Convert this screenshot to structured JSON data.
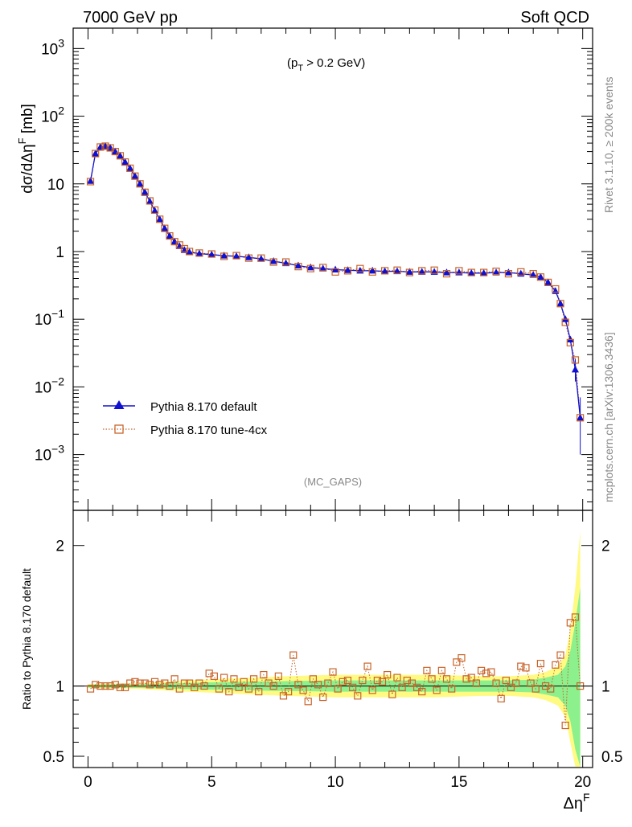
{
  "header": {
    "left": "7000 GeV pp",
    "right": "Soft QCD"
  },
  "annotation": "(p_T > 0.2 GeV)",
  "analysis_tag": "(MC_GAPS)",
  "side_labels": {
    "rivet": "Rivet 3.1.10, ≥ 200k events",
    "source": "mcplots.cern.ch [arXiv:1306.3436]"
  },
  "colors": {
    "default": "#1010d0",
    "tune": "#c8642a",
    "band_yellow": "#fffa82",
    "band_green": "#8cf08c"
  },
  "chart_data": [
    {
      "type": "line",
      "panel": "main",
      "ylabel": "dσ/dΔη^F [mb]",
      "xlim": [
        -0.6,
        20.4
      ],
      "ylim": [
        0.00015,
        2000
      ],
      "yscale": "log",
      "ytick_labels": [
        "10^-3",
        "10^-2",
        "10^-1",
        "1",
        "10",
        "10^2",
        "10^3"
      ],
      "legend_position": "lower-left",
      "series": [
        {
          "name": "Pythia 8.170 default",
          "marker": "filled-triangle",
          "x": [
            0.1,
            0.3,
            0.5,
            0.7,
            0.9,
            1.1,
            1.3,
            1.5,
            1.7,
            1.9,
            2.1,
            2.3,
            2.5,
            2.7,
            2.9,
            3.1,
            3.3,
            3.5,
            3.7,
            3.9,
            4.1,
            4.5,
            5.0,
            5.5,
            6.0,
            6.5,
            7.0,
            7.5,
            8.0,
            8.5,
            9.0,
            9.5,
            10.0,
            10.5,
            11.0,
            11.5,
            12.0,
            12.5,
            13.0,
            13.5,
            14.0,
            14.5,
            15.0,
            15.5,
            16.0,
            16.5,
            17.0,
            17.5,
            18.0,
            18.3,
            18.6,
            18.9,
            19.1,
            19.3,
            19.5,
            19.7,
            19.9
          ],
          "y": [
            11,
            28,
            35,
            36,
            34,
            30,
            26,
            21,
            17,
            13,
            10,
            7.5,
            5.5,
            4.0,
            3.0,
            2.2,
            1.7,
            1.4,
            1.2,
            1.05,
            0.98,
            0.93,
            0.9,
            0.87,
            0.85,
            0.82,
            0.78,
            0.72,
            0.67,
            0.62,
            0.58,
            0.56,
            0.54,
            0.53,
            0.52,
            0.52,
            0.51,
            0.51,
            0.5,
            0.5,
            0.5,
            0.49,
            0.49,
            0.48,
            0.48,
            0.49,
            0.49,
            0.47,
            0.45,
            0.42,
            0.35,
            0.26,
            0.17,
            0.1,
            0.05,
            0.018,
            0.0035
          ]
        },
        {
          "name": "Pythia 8.170 tune-4cx",
          "marker": "open-square",
          "x": [
            0.1,
            0.3,
            0.5,
            0.7,
            0.9,
            1.1,
            1.3,
            1.5,
            1.7,
            1.9,
            2.1,
            2.3,
            2.5,
            2.7,
            2.9,
            3.1,
            3.3,
            3.5,
            3.7,
            3.9,
            4.1,
            4.5,
            5.0,
            5.5,
            6.0,
            6.5,
            7.0,
            7.5,
            8.0,
            8.5,
            9.0,
            9.5,
            10.0,
            10.5,
            11.0,
            11.5,
            12.0,
            12.5,
            13.0,
            13.5,
            14.0,
            14.5,
            15.0,
            15.5,
            16.0,
            16.5,
            17.0,
            17.5,
            18.0,
            18.3,
            18.6,
            18.9,
            19.1,
            19.3,
            19.5,
            19.7,
            19.9
          ],
          "y": [
            10.8,
            28,
            35,
            36,
            34,
            30,
            26,
            21,
            17,
            13,
            10,
            7.5,
            5.6,
            4.1,
            3.0,
            2.2,
            1.7,
            1.4,
            1.25,
            1.1,
            1.0,
            0.95,
            0.92,
            0.85,
            0.87,
            0.8,
            0.8,
            0.7,
            0.7,
            0.6,
            0.56,
            0.58,
            0.5,
            0.52,
            0.56,
            0.5,
            0.52,
            0.53,
            0.49,
            0.52,
            0.53,
            0.47,
            0.52,
            0.49,
            0.49,
            0.51,
            0.47,
            0.5,
            0.47,
            0.42,
            0.35,
            0.28,
            0.17,
            0.09,
            0.045,
            0.025,
            0.0035
          ]
        }
      ]
    },
    {
      "type": "line",
      "panel": "ratio",
      "xlabel": "Δη^F",
      "ylabel": "Ratio to Pythia 8.170 default",
      "xlim": [
        -0.6,
        20.4
      ],
      "ylim": [
        0.42,
        2.25
      ],
      "xtick_labels": [
        "0",
        "5",
        "10",
        "15",
        "20"
      ],
      "ytick_labels": [
        "0.5",
        "1",
        "2"
      ],
      "reference_band": {
        "x": [
          0,
          2,
          4,
          6,
          8,
          10,
          12,
          14,
          16,
          17,
          18,
          18.5,
          19,
          19.3,
          19.5,
          19.7,
          19.9
        ],
        "yellow_half_width": [
          0.015,
          0.02,
          0.04,
          0.055,
          0.07,
          0.08,
          0.08,
          0.08,
          0.07,
          0.07,
          0.08,
          0.1,
          0.14,
          0.22,
          0.4,
          0.7,
          1.1
        ],
        "green_half_width": [
          0.01,
          0.013,
          0.022,
          0.03,
          0.035,
          0.04,
          0.04,
          0.04,
          0.04,
          0.04,
          0.045,
          0.06,
          0.08,
          0.14,
          0.25,
          0.45,
          0.7
        ]
      },
      "series": [
        {
          "name": "Pythia 8.170 tune-4cx",
          "x": [
            0.1,
            0.3,
            0.5,
            0.7,
            0.9,
            1.1,
            1.3,
            1.5,
            1.7,
            1.9,
            2.1,
            2.3,
            2.5,
            2.7,
            2.9,
            3.1,
            3.3,
            3.5,
            3.7,
            3.9,
            4.1,
            4.3,
            4.5,
            4.7,
            4.9,
            5.1,
            5.3,
            5.5,
            5.7,
            5.9,
            6.1,
            6.3,
            6.5,
            6.7,
            6.9,
            7.1,
            7.3,
            7.5,
            7.7,
            7.9,
            8.1,
            8.3,
            8.5,
            8.7,
            8.9,
            9.1,
            9.3,
            9.5,
            9.7,
            9.9,
            10.1,
            10.3,
            10.5,
            10.7,
            10.9,
            11.1,
            11.3,
            11.5,
            11.7,
            11.9,
            12.1,
            12.3,
            12.5,
            12.7,
            12.9,
            13.1,
            13.3,
            13.5,
            13.7,
            13.9,
            14.1,
            14.3,
            14.5,
            14.7,
            14.9,
            15.1,
            15.3,
            15.5,
            15.7,
            15.9,
            16.1,
            16.3,
            16.5,
            16.7,
            16.9,
            17.1,
            17.3,
            17.5,
            17.7,
            17.9,
            18.1,
            18.3,
            18.5,
            18.7,
            18.9,
            19.1,
            19.3,
            19.5,
            19.7,
            19.9
          ],
          "y": [
            0.98,
            1.01,
            1.0,
            1.0,
            1.0,
            1.01,
            0.99,
            0.99,
            1.02,
            1.03,
            1.02,
            1.02,
            1.01,
            1.03,
            1.01,
            1.02,
            1.0,
            1.05,
            0.98,
            1.02,
            1.02,
            0.99,
            1.02,
            1.0,
            1.09,
            1.07,
            0.98,
            1.06,
            0.96,
            1.05,
            0.99,
            1.03,
            0.98,
            1.05,
            0.96,
            1.08,
            1.02,
            1.0,
            1.07,
            0.93,
            0.96,
            1.22,
            1.01,
            0.97,
            0.89,
            1.05,
            1.01,
            0.92,
            1.02,
            1.1,
            0.98,
            1.03,
            1.04,
            0.99,
            0.93,
            1.04,
            1.14,
            0.97,
            1.04,
            1.03,
            1.08,
            0.94,
            1.06,
            0.99,
            1.04,
            1.02,
            0.99,
            0.96,
            1.11,
            1.05,
            0.97,
            1.11,
            1.05,
            0.98,
            1.17,
            1.2,
            1.05,
            1.06,
            1.02,
            1.11,
            1.09,
            1.1,
            1.02,
            0.91,
            1.04,
            0.99,
            1.02,
            1.14,
            1.13,
            1.02,
            0.98,
            1.16,
            1.0,
            0.98,
            1.15,
            1.22,
            0.72,
            1.45,
            1.49,
            1.0
          ]
        }
      ]
    }
  ]
}
